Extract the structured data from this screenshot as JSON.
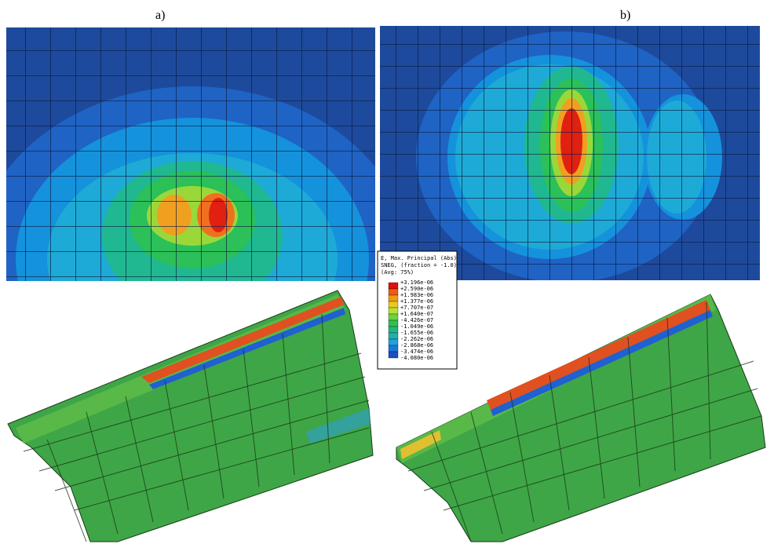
{
  "panels": [
    {
      "label": "a)"
    },
    {
      "label": "b)"
    }
  ],
  "legend": {
    "title_lines": [
      "E, Max. Principal (Abs)",
      "SNEG, (fraction = -1.0)",
      "(Avg: 75%)"
    ],
    "entries": [
      "+3.196e-06",
      "+2.590e-06",
      "+1.983e-06",
      "+1.377e-06",
      "+7.707e-07",
      "+1.640e-07",
      "-4.426e-07",
      "-1.049e-06",
      "-1.655e-06",
      "-2.262e-06",
      "-2.868e-06",
      "-3.474e-06",
      "-4.080e-06"
    ]
  }
}
